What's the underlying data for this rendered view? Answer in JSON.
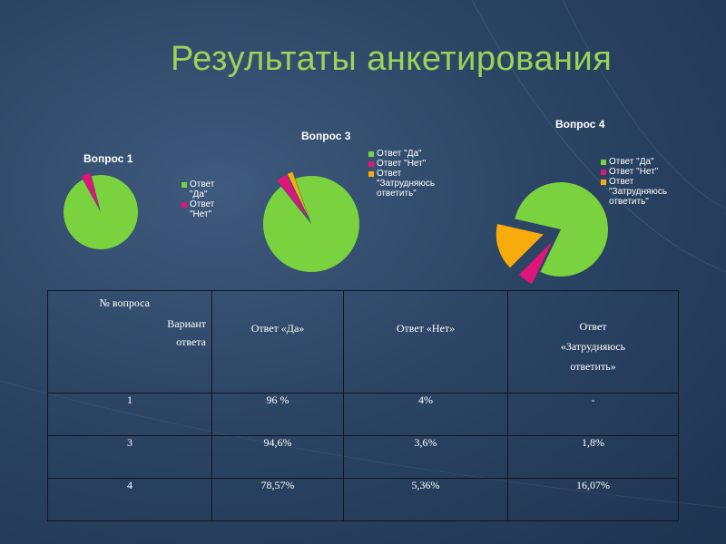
{
  "title": "Результаты анкетирования",
  "colors": {
    "yes": "#7bd23f",
    "no": "#e0157a",
    "unsure": "#f7ac0c",
    "title": "#9bd35a"
  },
  "chart_data": [
    {
      "type": "pie",
      "title": "Вопрос 1",
      "slices": [
        {
          "label": "Ответ \"Да\"",
          "value": 96,
          "color": "#7bd23f"
        },
        {
          "label": "Ответ \"Нет\"",
          "value": 4,
          "color": "#e0157a"
        }
      ]
    },
    {
      "type": "pie",
      "title": "Вопрос 3",
      "slices": [
        {
          "label": "Ответ \"Да\"",
          "value": 94.6,
          "color": "#7bd23f"
        },
        {
          "label": "Ответ \"Нет\"",
          "value": 3.6,
          "color": "#e0157a"
        },
        {
          "label": "Ответ \"Затрудняюсь ответить\"",
          "value": 1.8,
          "color": "#f7ac0c"
        }
      ]
    },
    {
      "type": "pie",
      "title": "Вопрос 4",
      "slices": [
        {
          "label": "Ответ \"Да\"",
          "value": 78.57,
          "color": "#7bd23f"
        },
        {
          "label": "Ответ \"Нет\"",
          "value": 5.36,
          "color": "#e0157a"
        },
        {
          "label": "Ответ \"Затрудняюсь ответить\"",
          "value": 16.07,
          "color": "#f7ac0c"
        }
      ]
    }
  ],
  "legends": [
    [
      "Ответ\n\"Да\"",
      "Ответ\n\"Нет\""
    ],
    [
      "Ответ \"Да\"",
      "Ответ \"Нет\"",
      "Ответ\n\"Затрудняюсь\nответить\""
    ],
    [
      "Ответ \"Да\"",
      "Ответ \"Нет\"",
      "Ответ\n\"Затрудняюсь\nответить\""
    ]
  ],
  "table": {
    "header_question": "№ вопроса",
    "header_variant": "Вариант\nответа",
    "col_yes": "Ответ «Да»",
    "col_no": "Ответ «Нет»",
    "col_unsure": "Ответ\n«Затрудняюсь\nответить»",
    "rows": [
      {
        "q": "1",
        "yes": "96 %",
        "no": "4%",
        "unsure": "-"
      },
      {
        "q": "3",
        "yes": "94,6%",
        "no": "3,6%",
        "unsure": "1,8%"
      },
      {
        "q": "4",
        "yes": "78,57%",
        "no": "5,36%",
        "unsure": "16,07%"
      }
    ]
  }
}
